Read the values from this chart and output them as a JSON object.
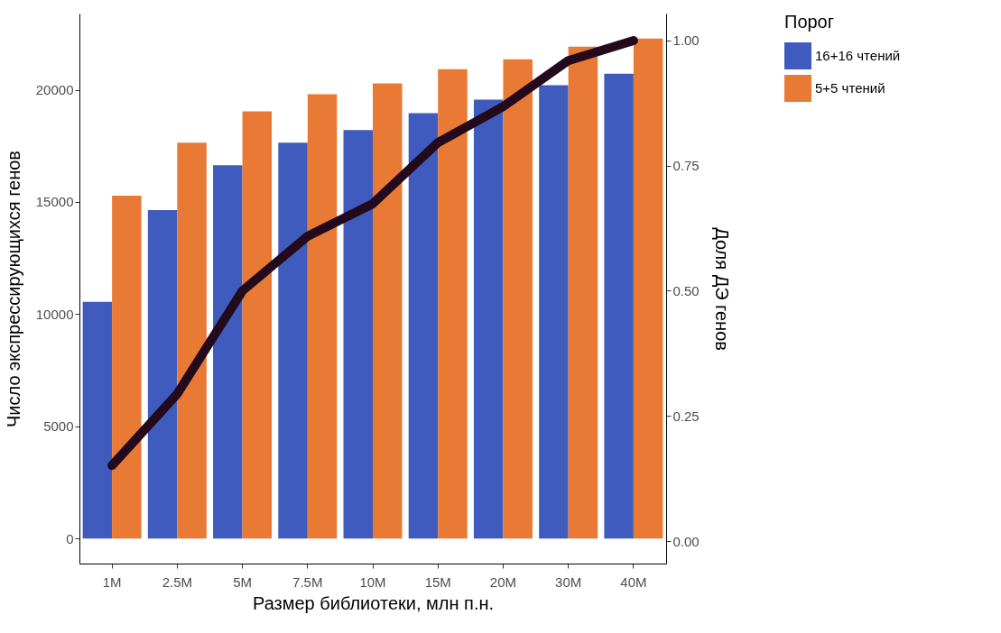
{
  "chart_data": {
    "type": "bar",
    "xlabel": "Размер библиотеки, млн п.н.",
    "ylabel": "Число экспрессирующихся генов",
    "y2label": "Доля ДЭ генов",
    "legend_title": "Порог",
    "categories": [
      "1M",
      "2.5M",
      "5M",
      "7.5M",
      "10M",
      "15M",
      "20M",
      "30M",
      "40M"
    ],
    "series": [
      {
        "name": "16+16 чтений",
        "color": "#3f5bbd",
        "values": [
          10550,
          14640,
          16640,
          17640,
          18200,
          18960,
          19560,
          20200,
          20720
        ]
      },
      {
        "name": "5+5 чтений",
        "color": "#e87a35",
        "values": [
          15280,
          17640,
          19040,
          19800,
          20280,
          20920,
          21360,
          21920,
          22280
        ]
      },
      {
        "type": "line",
        "axis": "y2",
        "color": "#230a1c",
        "values": [
          0.151,
          0.294,
          0.5,
          0.609,
          0.674,
          0.796,
          0.868,
          0.96,
          1.0
        ]
      }
    ],
    "ylim": [
      -1120,
      23400
    ],
    "yticks": [
      0,
      5000,
      10000,
      15000,
      20000
    ],
    "y2lim": [
      -0.045,
      1.054
    ],
    "y2ticks": [
      {
        "value": 0,
        "label": "0.00"
      },
      {
        "value": 0.25,
        "label": "0.25"
      },
      {
        "value": 0.5,
        "label": "0.50"
      },
      {
        "value": 0.75,
        "label": "0.75"
      },
      {
        "value": 1,
        "label": "1.00"
      }
    ],
    "legend": "right"
  }
}
